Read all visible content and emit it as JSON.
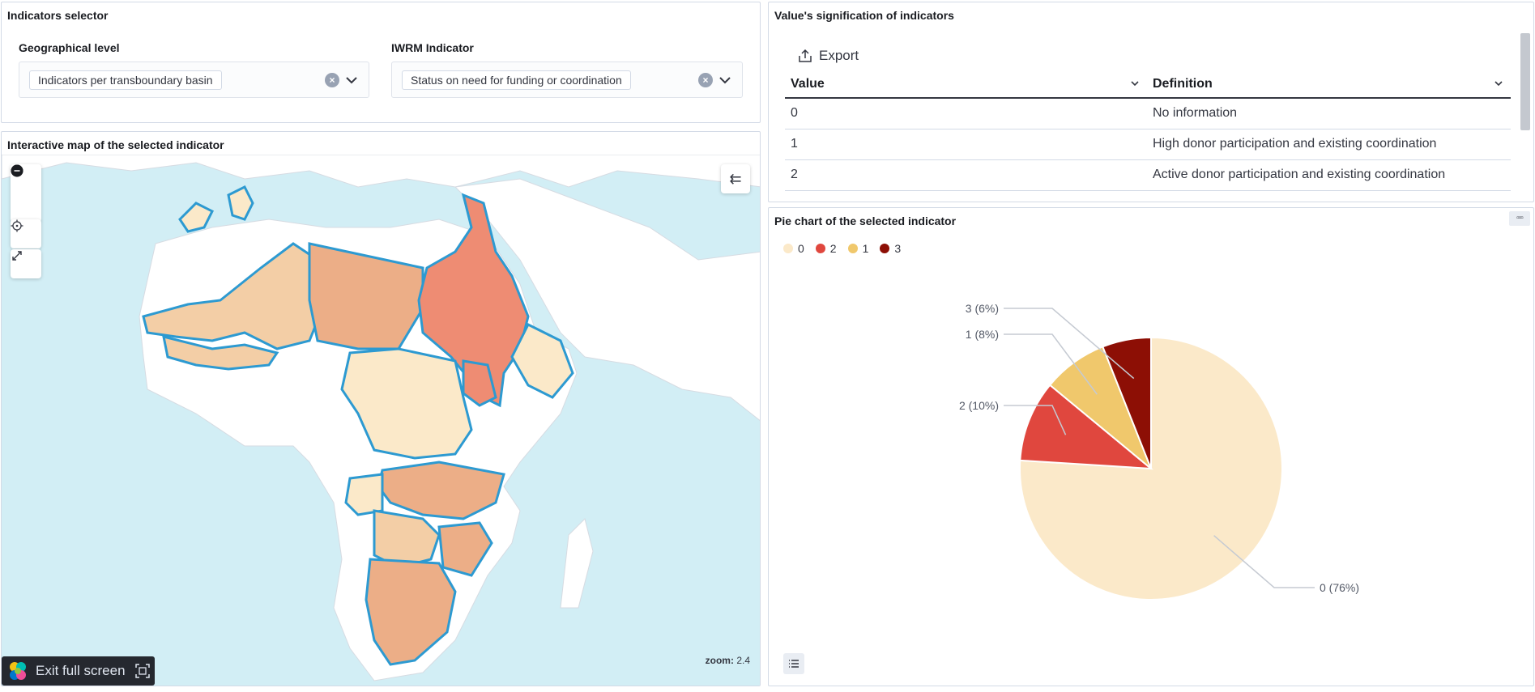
{
  "selector": {
    "title": "Indicators selector",
    "geo": {
      "label": "Geographical level",
      "value": "Indicators per transboundary basin"
    },
    "iwrm": {
      "label": "IWRM Indicator",
      "value": "Status on need for funding or coordination"
    }
  },
  "map": {
    "title": "Interactive map of the selected indicator",
    "zoom_label": "zoom:",
    "zoom_value": "2.4",
    "exit_label": "Exit full screen",
    "colors": {
      "water": "#d2eef5",
      "land": "#ffffff",
      "border": "#2d9ad1",
      "v0": "#fbe9c9",
      "v1": "#f3cea6",
      "v2_light": "#ecae87",
      "v3": "#ee8c73"
    }
  },
  "values": {
    "title": "Value's signification of indicators",
    "export_label": "Export",
    "headers": [
      "Value",
      "Definition"
    ],
    "rows": [
      [
        "0",
        "No information"
      ],
      [
        "1",
        "High donor participation and existing coordination"
      ],
      [
        "2",
        "Active donor participation and existing coordination"
      ]
    ]
  },
  "pie": {
    "title": "Pie chart of the selected indicator",
    "legend": [
      {
        "label": "0",
        "color": "#fbe9c9"
      },
      {
        "label": "2",
        "color": "#e0473e"
      },
      {
        "label": "1",
        "color": "#f0c86c"
      },
      {
        "label": "3",
        "color": "#8d0f05"
      }
    ]
  },
  "chart_data": {
    "type": "pie",
    "title": "Pie chart of the selected indicator",
    "slices": [
      {
        "label": "0",
        "value": 76,
        "display": "0 (76%)",
        "color": "#fbe9c9"
      },
      {
        "label": "2",
        "value": 10,
        "display": "2 (10%)",
        "color": "#e0473e"
      },
      {
        "label": "1",
        "value": 8,
        "display": "1 (8%)",
        "color": "#f0c86c"
      },
      {
        "label": "3",
        "value": 6,
        "display": "3 (6%)",
        "color": "#8d0f05"
      }
    ],
    "legend_position": "top-left"
  }
}
